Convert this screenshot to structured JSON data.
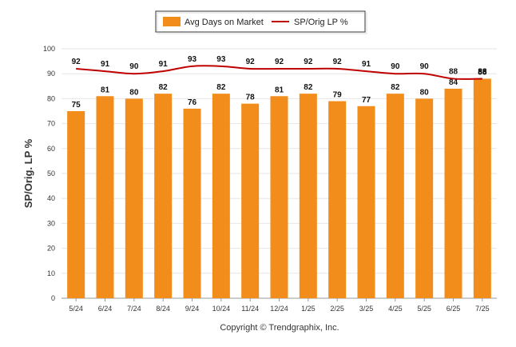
{
  "chart_data": {
    "type": "bar",
    "title": "",
    "xlabel": "",
    "ylabel": "SP/Orig. LP %",
    "ylim": [
      0,
      100
    ],
    "yticks": [
      0,
      10,
      20,
      30,
      40,
      50,
      60,
      70,
      80,
      90,
      100
    ],
    "grid": true,
    "legend_position": "top-center",
    "categories": [
      "5/24",
      "6/24",
      "7/24",
      "8/24",
      "9/24",
      "10/24",
      "11/24",
      "12/24",
      "1/25",
      "2/25",
      "3/25",
      "4/25",
      "5/25",
      "6/25",
      "7/25"
    ],
    "series": [
      {
        "name": "Avg Days on Market",
        "kind": "bar",
        "color": "#f28c1a",
        "values": [
          75,
          81,
          80,
          82,
          76,
          82,
          78,
          81,
          82,
          79,
          77,
          82,
          80,
          84,
          88
        ]
      },
      {
        "name": "SP/Orig LP %",
        "kind": "line",
        "color": "#c00000",
        "values": [
          92,
          91,
          90,
          91,
          93,
          93,
          92,
          92,
          92,
          92,
          91,
          90,
          90,
          88,
          88
        ]
      }
    ]
  },
  "footer": {
    "copyright": "Copyright © Trendgraphix, Inc."
  }
}
